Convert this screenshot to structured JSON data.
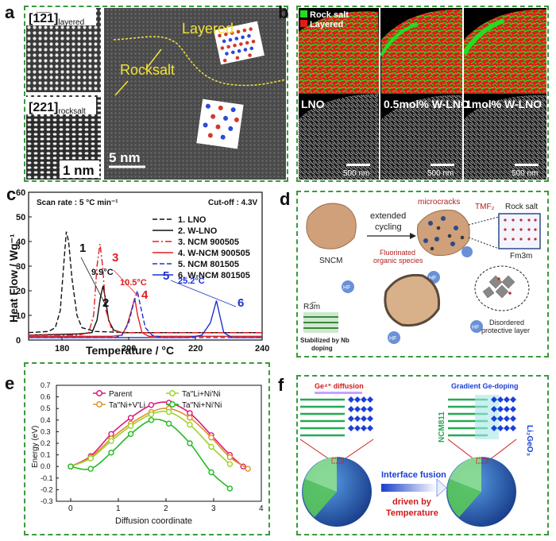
{
  "panels": {
    "a": {
      "letter": "a",
      "label_layered_hkl": "[1̅2̅1]",
      "label_layered_sub": "layered",
      "label_rocksalt_hkl": "[221]",
      "label_rocksalt_sub": "rocksalt",
      "scale_left": "1 nm",
      "layered_text": "Layered",
      "rocksalt_text": "Rocksalt",
      "scale_right": "5 nm"
    },
    "b": {
      "letter": "b",
      "legend_rock": "Rock salt",
      "legend_layered": "Layered",
      "samples": [
        "LNO",
        "0.5mol% W-LNO",
        "1mol% W-LNO"
      ],
      "scale": "500 nm",
      "colors": {
        "rock": "#22dd22",
        "layered": "#ee1c1c"
      }
    },
    "c": {
      "letter": "c",
      "scan_rate": "Scan rate : 5 °C min⁻¹",
      "cutoff": "Cut-off : 4.3V",
      "ylabel": "Heat Flow  /  Wg⁻¹",
      "xlabel": "Temperature   /   °C",
      "annotations": [
        "9.9°C",
        "10.5°C",
        "25.2°C"
      ],
      "peak_numbers": [
        "1",
        "2",
        "3",
        "4",
        "5",
        "6"
      ]
    },
    "d": {
      "letter": "d",
      "sncm": "SNCM",
      "extended": "extended",
      "cycling": "cycling",
      "microcracks": "microcracks",
      "tmf": "TMF₂",
      "rock_salt": "Rock salt",
      "fm3m": "Fm3m",
      "fluorinated": "Fluorinated",
      "organic": "organic species",
      "hf": "HF",
      "r3m": "R3̅m",
      "stabilized": "Stabilized by Nb",
      "doping": "doping",
      "disordered": "Disordered",
      "protective": "protective layer"
    },
    "e": {
      "letter": "e",
      "ylabel": "Energy (eV)",
      "xlabel": "Diffusion coordinate"
    },
    "f": {
      "letter": "f",
      "ge_diffusion": "Ge⁴⁺ diffusion",
      "gradient": "Gradient Ge-doping",
      "ncm811": "NCM811",
      "li2geo3": "Li₂GeO₃",
      "interface_fusion": "Interface fusion",
      "driven_by": "driven by",
      "temperature": "Temperature"
    }
  },
  "chart_data": [
    {
      "type": "line",
      "panel": "c",
      "xlabel": "Temperature   /   °C",
      "ylabel": "Heat Flow  /  Wg⁻¹",
      "xlim": [
        170,
        240
      ],
      "ylim": [
        0,
        60
      ],
      "xticks": [
        180,
        200,
        220,
        240
      ],
      "yticks": [
        0,
        10,
        20,
        30,
        40,
        50,
        60
      ],
      "legend_position": "top-right",
      "series": [
        {
          "name": "1. LNO",
          "color": "#111111",
          "dash": "6,3",
          "points": [
            [
              170,
              3
            ],
            [
              176,
              3.5
            ],
            [
              178,
              5
            ],
            [
              179.5,
              12
            ],
            [
              180.5,
              30
            ],
            [
              181.3,
              44
            ],
            [
              182,
              40
            ],
            [
              183,
              25
            ],
            [
              184.5,
              10
            ],
            [
              186,
              5
            ],
            [
              190,
              3.5
            ],
            [
              200,
              3
            ],
            [
              240,
              3
            ]
          ]
        },
        {
          "name": "2. W-LNO",
          "color": "#111111",
          "dash": "",
          "points": [
            [
              170,
              2
            ],
            [
              185,
              2.5
            ],
            [
              189,
              3
            ],
            [
              190.5,
              8
            ],
            [
              191.5,
              17
            ],
            [
              192.3,
              22
            ],
            [
              193,
              17
            ],
            [
              194,
              8
            ],
            [
              195.5,
              4
            ],
            [
              198,
              3
            ],
            [
              210,
              3
            ],
            [
              240,
              3
            ]
          ]
        },
        {
          "name": "3. NCM 900505",
          "color": "#e02020",
          "dash": "8,3,2,3",
          "points": [
            [
              170,
              2
            ],
            [
              185,
              2
            ],
            [
              188,
              3
            ],
            [
              189.5,
              10
            ],
            [
              190.5,
              30
            ],
            [
              191.4,
              39
            ],
            [
              192.2,
              30
            ],
            [
              193.2,
              12
            ],
            [
              195,
              4
            ],
            [
              198,
              3
            ],
            [
              240,
              3
            ]
          ]
        },
        {
          "name": "4. W-NCM 900505",
          "color": "#e02020",
          "dash": "",
          "points": [
            [
              170,
              1.5
            ],
            [
              195,
              1.5
            ],
            [
              198,
              2
            ],
            [
              199.5,
              6
            ],
            [
              200.8,
              12
            ],
            [
              201.8,
              17
            ],
            [
              202.7,
              10
            ],
            [
              204,
              3
            ],
            [
              206,
              1.5
            ],
            [
              240,
              1.5
            ]
          ]
        },
        {
          "name": "5. NCM 801505",
          "color": "#2030d0",
          "dash": "6,3",
          "points": [
            [
              170,
              1
            ],
            [
              196,
              1
            ],
            [
              198,
              2
            ],
            [
              200,
              7
            ],
            [
              201.5,
              15
            ],
            [
              202.6,
              20
            ],
            [
              203.5,
              14
            ],
            [
              205,
              5
            ],
            [
              207,
              2
            ],
            [
              210,
              1
            ],
            [
              240,
              1
            ]
          ]
        },
        {
          "name": "6. W-NCM 801505",
          "color": "#2030d0",
          "dash": "",
          "points": [
            [
              170,
              1
            ],
            [
              218,
              1
            ],
            [
              222,
              2
            ],
            [
              224.5,
              7
            ],
            [
              226.3,
              16
            ],
            [
              227.3,
              10
            ],
            [
              228.5,
              3
            ],
            [
              231,
              1
            ],
            [
              240,
              1
            ]
          ]
        }
      ]
    },
    {
      "type": "line",
      "panel": "e",
      "xlabel": "Diffusion coordinate",
      "ylabel": "Energy (eV)",
      "xlim": [
        -0.3,
        4.0
      ],
      "ylim": [
        -0.3,
        0.7
      ],
      "xticks": [
        0,
        1,
        2,
        3,
        4
      ],
      "yticks": [
        -0.3,
        -0.2,
        -0.1,
        0.0,
        0.1,
        0.2,
        0.3,
        0.4,
        0.5,
        0.6,
        0.7
      ],
      "legend_position": "top",
      "series": [
        {
          "name": "Parent",
          "color": "#d81a7a",
          "x": [
            0,
            0.42,
            0.85,
            1.26,
            1.69,
            2.06,
            2.5,
            2.95,
            3.34,
            3.62
          ],
          "y": [
            0,
            0.09,
            0.28,
            0.42,
            0.53,
            0.55,
            0.46,
            0.27,
            0.1,
            0.0
          ]
        },
        {
          "name": "Ta′′Ni+V′Li",
          "color": "#e0922a",
          "x": [
            0,
            0.42,
            0.85,
            1.26,
            1.69,
            2.06,
            2.5,
            2.95,
            3.34,
            3.72
          ],
          "y": [
            0,
            0.08,
            0.24,
            0.37,
            0.47,
            0.5,
            0.42,
            0.25,
            0.08,
            -0.02
          ]
        },
        {
          "name": "Ta′′Li+Ni′Ni",
          "color": "#9bd42a",
          "x": [
            0,
            0.42,
            0.85,
            1.26,
            1.69,
            2.06,
            2.5,
            2.95,
            3.34
          ],
          "y": [
            0,
            0.07,
            0.22,
            0.35,
            0.45,
            0.47,
            0.36,
            0.17,
            0.02
          ]
        },
        {
          "name": "Ta′′Ni+Ni′Ni",
          "color": "#22bb22",
          "x": [
            0,
            0.42,
            0.85,
            1.26,
            1.69,
            2.06,
            2.5,
            2.95,
            3.34
          ],
          "y": [
            0,
            -0.02,
            0.12,
            0.28,
            0.4,
            0.37,
            0.2,
            -0.05,
            -0.19
          ]
        }
      ]
    }
  ]
}
